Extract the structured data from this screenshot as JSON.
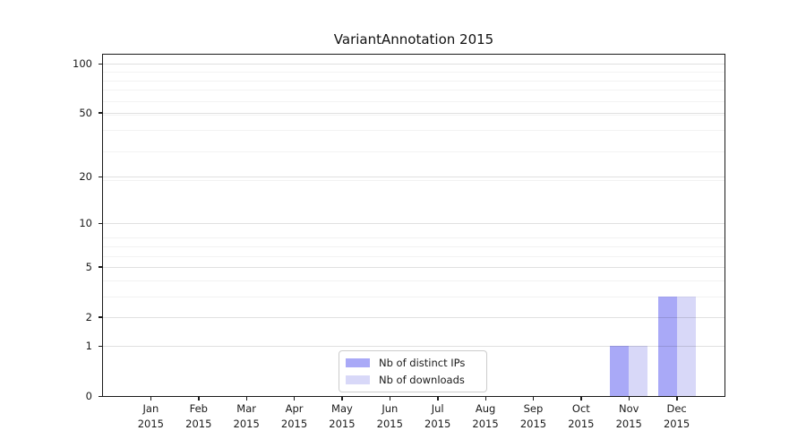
{
  "title": "VariantAnnotation 2015",
  "chart_data": {
    "type": "bar",
    "title": "VariantAnnotation 2015",
    "categories": [
      "Jan",
      "Feb",
      "Mar",
      "Apr",
      "May",
      "Jun",
      "Jul",
      "Aug",
      "Sep",
      "Oct",
      "Nov",
      "Dec"
    ],
    "year_label": "2015",
    "series": [
      {
        "name": "Nb of distinct IPs",
        "color": "#a9a9f7",
        "values": [
          0,
          0,
          0,
          0,
          0,
          0,
          0,
          0,
          0,
          0,
          1,
          3
        ]
      },
      {
        "name": "Nb of downloads",
        "color": "#d8d8f8",
        "values": [
          0,
          0,
          0,
          0,
          0,
          0,
          0,
          0,
          0,
          0,
          1,
          3
        ]
      }
    ],
    "yscale": "log1p",
    "ylim": [
      0,
      113
    ],
    "y_major_ticks": [
      0,
      1,
      2,
      5,
      10,
      20,
      50,
      100
    ],
    "y_minor_gridlines": [
      3,
      4,
      6,
      7,
      8,
      19,
      29,
      39,
      49,
      59,
      69,
      79,
      89
    ],
    "grid": "horizontal",
    "legend_position": "lower center",
    "axis_color": "#1a1a1a",
    "grid_major_color": "#e0e0e0",
    "grid_minor_color": "#f2f2f2"
  }
}
